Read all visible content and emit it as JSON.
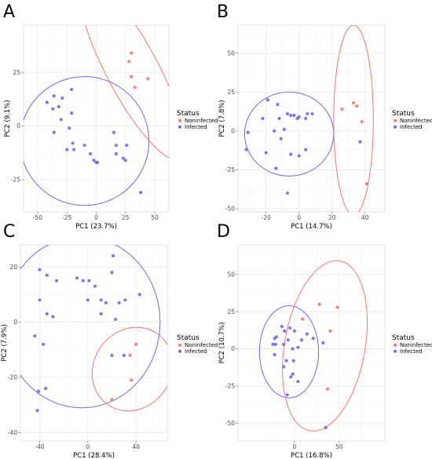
{
  "colors": {
    "noninfected": "#f8766d",
    "infected": "#6a6af0",
    "grid": "#ebebeb",
    "axis_line": "#d9d9d9"
  },
  "legend": {
    "title": "Status",
    "entries": [
      "Noninfected",
      "Infected"
    ]
  },
  "chart_data": [
    {
      "panel": "A",
      "type": "scatter",
      "xlabel": "PC1 (23.7%)",
      "ylabel": "PC2 (9.1%)",
      "xlim": [
        -62,
        62
      ],
      "ylim": [
        -40,
        47
      ],
      "xticks": [
        -50,
        -25,
        0,
        25,
        50
      ],
      "yticks": [
        -25,
        0,
        25
      ],
      "grid": true,
      "legend_position": "right",
      "series": [
        {
          "name": "Noninfected",
          "points": [
            [
              30,
              34
            ],
            [
              28,
              30
            ],
            [
              30,
              23
            ],
            [
              44,
              22
            ],
            [
              33,
              18
            ]
          ]
        },
        {
          "name": "Infected",
          "points": [
            [
              -42,
              11
            ],
            [
              -36,
              14
            ],
            [
              -29,
              13
            ],
            [
              -21,
              17
            ],
            [
              -32,
              9
            ],
            [
              -37,
              8
            ],
            [
              -30,
              3
            ],
            [
              -36,
              -3
            ],
            [
              -23,
              -1
            ],
            [
              -20,
              -8
            ],
            [
              -10,
              -9
            ],
            [
              -25,
              -11
            ],
            [
              -19,
              -11
            ],
            [
              -5,
              -13
            ],
            [
              -2,
              -16
            ],
            [
              0,
              -17
            ],
            [
              1,
              -17
            ],
            [
              15,
              -3
            ],
            [
              17,
              -9
            ],
            [
              26,
              -9
            ],
            [
              17,
              -13
            ],
            [
              23,
              -15
            ],
            [
              25,
              -16
            ],
            [
              38,
              -31
            ],
            [
              -21,
              6
            ]
          ]
        }
      ],
      "ellipses": [
        {
          "series": "Noninfected",
          "center": [
            31,
            26
          ],
          "rx": 22,
          "ry": 47,
          "angle_deg": -28
        },
        {
          "series": "Infected",
          "center": [
            -10,
            -7
          ],
          "rx": 55,
          "ry": 30,
          "angle_deg": 35
        }
      ]
    },
    {
      "panel": "B",
      "type": "scatter",
      "xlabel": "PC1 (14.7%)",
      "ylabel": "PC2 (7.8%)",
      "xlim": [
        -37,
        52
      ],
      "ylim": [
        -52,
        68
      ],
      "xticks": [
        -20,
        0,
        20,
        40
      ],
      "yticks": [
        -50,
        -25,
        0,
        25,
        50
      ],
      "grid": true,
      "legend_position": "right",
      "series": [
        {
          "name": "Noninfected",
          "points": [
            [
              33,
              18
            ],
            [
              35,
              16
            ],
            [
              26,
              14
            ],
            [
              38,
              6
            ],
            [
              41,
              -34
            ]
          ]
        },
        {
          "name": "Infected",
          "points": [
            [
              -19,
              20
            ],
            [
              -13,
              17
            ],
            [
              -22,
              8
            ],
            [
              -12,
              8
            ],
            [
              -5,
              10
            ],
            [
              -3,
              10
            ],
            [
              0,
              9
            ],
            [
              5,
              11
            ],
            [
              8,
              11
            ],
            [
              -7,
              11
            ],
            [
              4,
              8
            ],
            [
              -1,
              8
            ],
            [
              -31,
              -1
            ],
            [
              -15,
              0
            ],
            [
              -11,
              -5
            ],
            [
              -9,
              1
            ],
            [
              -32,
              -12
            ],
            [
              -20,
              -14
            ],
            [
              -5,
              -15
            ],
            [
              0,
              -16
            ],
            [
              4,
              -12
            ],
            [
              -14,
              -24
            ],
            [
              -7,
              -40
            ],
            [
              37,
              -7
            ]
          ]
        }
      ],
      "ellipses": [
        {
          "series": "Infected",
          "center": [
            -6,
            -2
          ],
          "rx": 27,
          "ry": 27,
          "angle_deg": 0
        },
        {
          "series": "Noninfected",
          "center": [
            33,
            7
          ],
          "rx": 12,
          "ry": 61,
          "angle_deg": 0
        }
      ]
    },
    {
      "panel": "C",
      "type": "scatter",
      "xlabel": "PC1 (28.4%)",
      "ylabel": "PC2 (7.9%)",
      "xlim": [
        -56,
        66
      ],
      "ylim": [
        -43,
        28
      ],
      "xticks": [
        -40,
        0,
        40
      ],
      "yticks": [
        -40,
        -20,
        0,
        20
      ],
      "grid": true,
      "legend_position": "right",
      "series": [
        {
          "name": "Noninfected",
          "points": [
            [
              35,
              -12
            ],
            [
              40,
              -8
            ],
            [
              36,
              -21
            ],
            [
              20,
              -28
            ]
          ]
        },
        {
          "name": "Infected",
          "points": [
            [
              -40,
              19
            ],
            [
              -34,
              17
            ],
            [
              -26,
              15
            ],
            [
              -9,
              16
            ],
            [
              -4,
              15
            ],
            [
              1,
              15
            ],
            [
              6,
              13
            ],
            [
              21,
              24
            ],
            [
              20,
              18
            ],
            [
              -40,
              8
            ],
            [
              -34,
              3
            ],
            [
              -29,
              2
            ],
            [
              0,
              8
            ],
            [
              11,
              8
            ],
            [
              15,
              7
            ],
            [
              26,
              7
            ],
            [
              31,
              8
            ],
            [
              43,
              10
            ],
            [
              23,
              1
            ],
            [
              11,
              3
            ],
            [
              30,
              -12
            ],
            [
              -44,
              -5
            ],
            [
              -37,
              -8
            ],
            [
              -35,
              -24
            ],
            [
              -41,
              -25
            ],
            [
              -42,
              -32
            ],
            [
              20,
              -12
            ]
          ]
        }
      ],
      "ellipses": [
        {
          "series": "Infected",
          "center": [
            -5,
            0
          ],
          "rx": 65,
          "ry": 31,
          "angle_deg": 0
        },
        {
          "series": "Noninfected",
          "center": [
            37,
            -17
          ],
          "rx": 36,
          "ry": 14,
          "angle_deg": -55
        }
      ]
    },
    {
      "panel": "D",
      "type": "scatter",
      "xlabel": "PC1 (16.8%)",
      "ylabel": "PC2 (10.7%)",
      "xlim": [
        -63,
        101
      ],
      "ylim": [
        -62,
        70
      ],
      "xticks": [
        0,
        50
      ],
      "yticks": [
        -50,
        -25,
        0,
        25,
        50
      ],
      "grid": true,
      "legend_position": "right",
      "series": [
        {
          "name": "Noninfected",
          "points": [
            [
              28,
              30
            ],
            [
              48,
              28
            ],
            [
              40,
              12
            ],
            [
              9,
              20
            ],
            [
              37,
              -27
            ]
          ]
        },
        {
          "name": "Infected",
          "points": [
            [
              -22,
              7
            ],
            [
              -24,
              3
            ],
            [
              -14,
              15
            ],
            [
              -11,
              12
            ],
            [
              -20,
              8
            ],
            [
              -21,
              3
            ],
            [
              -12,
              3
            ],
            [
              -7,
              6
            ],
            [
              -5,
              14
            ],
            [
              0,
              12
            ],
            [
              -2,
              0
            ],
            [
              -22,
              -4
            ],
            [
              -9,
              -8
            ],
            [
              -12,
              -12
            ],
            [
              -2,
              -17
            ],
            [
              4,
              1
            ],
            [
              14,
              10
            ],
            [
              21,
              7
            ],
            [
              32,
              4
            ],
            [
              8,
              6
            ],
            [
              -1,
              -8
            ],
            [
              -4,
              -19
            ],
            [
              4,
              -22
            ],
            [
              -8,
              -31
            ],
            [
              35,
              -53
            ]
          ]
        }
      ],
      "ellipses": [
        {
          "series": "Infected",
          "center": [
            -6,
            -2
          ],
          "rx": 33,
          "ry": 31,
          "angle_deg": 0
        },
        {
          "series": "Noninfected",
          "center": [
            34,
            2
          ],
          "rx": 45,
          "ry": 58,
          "angle_deg": 10
        }
      ]
    }
  ]
}
